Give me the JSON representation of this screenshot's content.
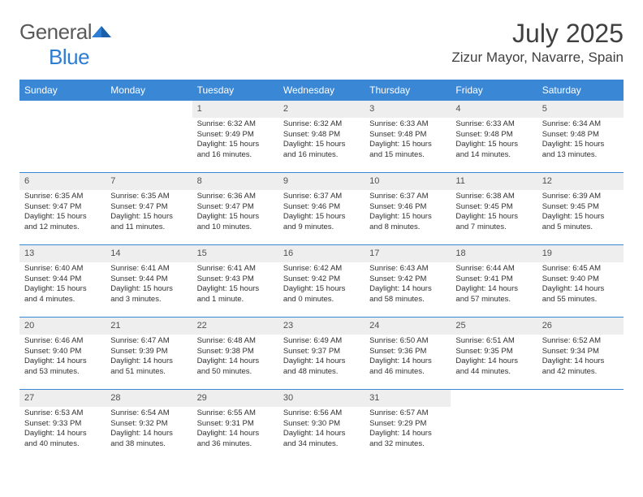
{
  "brand": {
    "name_a": "General",
    "name_b": "Blue"
  },
  "header": {
    "month_title": "July 2025",
    "location": "Zizur Mayor, Navarre, Spain"
  },
  "colors": {
    "header_bg": "#3a87d6",
    "header_text": "#ffffff",
    "daynum_bg": "#eeeeee",
    "row_border": "#3a87d6",
    "body_text": "#303030",
    "logo_gray": "#5a5a5a",
    "logo_blue": "#2d7dd2"
  },
  "day_labels": [
    "Sunday",
    "Monday",
    "Tuesday",
    "Wednesday",
    "Thursday",
    "Friday",
    "Saturday"
  ],
  "weeks": [
    [
      null,
      null,
      {
        "n": "1",
        "sr": "6:32 AM",
        "ss": "9:49 PM",
        "dl": "15 hours and 16 minutes."
      },
      {
        "n": "2",
        "sr": "6:32 AM",
        "ss": "9:48 PM",
        "dl": "15 hours and 16 minutes."
      },
      {
        "n": "3",
        "sr": "6:33 AM",
        "ss": "9:48 PM",
        "dl": "15 hours and 15 minutes."
      },
      {
        "n": "4",
        "sr": "6:33 AM",
        "ss": "9:48 PM",
        "dl": "15 hours and 14 minutes."
      },
      {
        "n": "5",
        "sr": "6:34 AM",
        "ss": "9:48 PM",
        "dl": "15 hours and 13 minutes."
      }
    ],
    [
      {
        "n": "6",
        "sr": "6:35 AM",
        "ss": "9:47 PM",
        "dl": "15 hours and 12 minutes."
      },
      {
        "n": "7",
        "sr": "6:35 AM",
        "ss": "9:47 PM",
        "dl": "15 hours and 11 minutes."
      },
      {
        "n": "8",
        "sr": "6:36 AM",
        "ss": "9:47 PM",
        "dl": "15 hours and 10 minutes."
      },
      {
        "n": "9",
        "sr": "6:37 AM",
        "ss": "9:46 PM",
        "dl": "15 hours and 9 minutes."
      },
      {
        "n": "10",
        "sr": "6:37 AM",
        "ss": "9:46 PM",
        "dl": "15 hours and 8 minutes."
      },
      {
        "n": "11",
        "sr": "6:38 AM",
        "ss": "9:45 PM",
        "dl": "15 hours and 7 minutes."
      },
      {
        "n": "12",
        "sr": "6:39 AM",
        "ss": "9:45 PM",
        "dl": "15 hours and 5 minutes."
      }
    ],
    [
      {
        "n": "13",
        "sr": "6:40 AM",
        "ss": "9:44 PM",
        "dl": "15 hours and 4 minutes."
      },
      {
        "n": "14",
        "sr": "6:41 AM",
        "ss": "9:44 PM",
        "dl": "15 hours and 3 minutes."
      },
      {
        "n": "15",
        "sr": "6:41 AM",
        "ss": "9:43 PM",
        "dl": "15 hours and 1 minute."
      },
      {
        "n": "16",
        "sr": "6:42 AM",
        "ss": "9:42 PM",
        "dl": "15 hours and 0 minutes."
      },
      {
        "n": "17",
        "sr": "6:43 AM",
        "ss": "9:42 PM",
        "dl": "14 hours and 58 minutes."
      },
      {
        "n": "18",
        "sr": "6:44 AM",
        "ss": "9:41 PM",
        "dl": "14 hours and 57 minutes."
      },
      {
        "n": "19",
        "sr": "6:45 AM",
        "ss": "9:40 PM",
        "dl": "14 hours and 55 minutes."
      }
    ],
    [
      {
        "n": "20",
        "sr": "6:46 AM",
        "ss": "9:40 PM",
        "dl": "14 hours and 53 minutes."
      },
      {
        "n": "21",
        "sr": "6:47 AM",
        "ss": "9:39 PM",
        "dl": "14 hours and 51 minutes."
      },
      {
        "n": "22",
        "sr": "6:48 AM",
        "ss": "9:38 PM",
        "dl": "14 hours and 50 minutes."
      },
      {
        "n": "23",
        "sr": "6:49 AM",
        "ss": "9:37 PM",
        "dl": "14 hours and 48 minutes."
      },
      {
        "n": "24",
        "sr": "6:50 AM",
        "ss": "9:36 PM",
        "dl": "14 hours and 46 minutes."
      },
      {
        "n": "25",
        "sr": "6:51 AM",
        "ss": "9:35 PM",
        "dl": "14 hours and 44 minutes."
      },
      {
        "n": "26",
        "sr": "6:52 AM",
        "ss": "9:34 PM",
        "dl": "14 hours and 42 minutes."
      }
    ],
    [
      {
        "n": "27",
        "sr": "6:53 AM",
        "ss": "9:33 PM",
        "dl": "14 hours and 40 minutes."
      },
      {
        "n": "28",
        "sr": "6:54 AM",
        "ss": "9:32 PM",
        "dl": "14 hours and 38 minutes."
      },
      {
        "n": "29",
        "sr": "6:55 AM",
        "ss": "9:31 PM",
        "dl": "14 hours and 36 minutes."
      },
      {
        "n": "30",
        "sr": "6:56 AM",
        "ss": "9:30 PM",
        "dl": "14 hours and 34 minutes."
      },
      {
        "n": "31",
        "sr": "6:57 AM",
        "ss": "9:29 PM",
        "dl": "14 hours and 32 minutes."
      },
      null,
      null
    ]
  ],
  "labels": {
    "sunrise": "Sunrise:",
    "sunset": "Sunset:",
    "daylight": "Daylight:"
  }
}
